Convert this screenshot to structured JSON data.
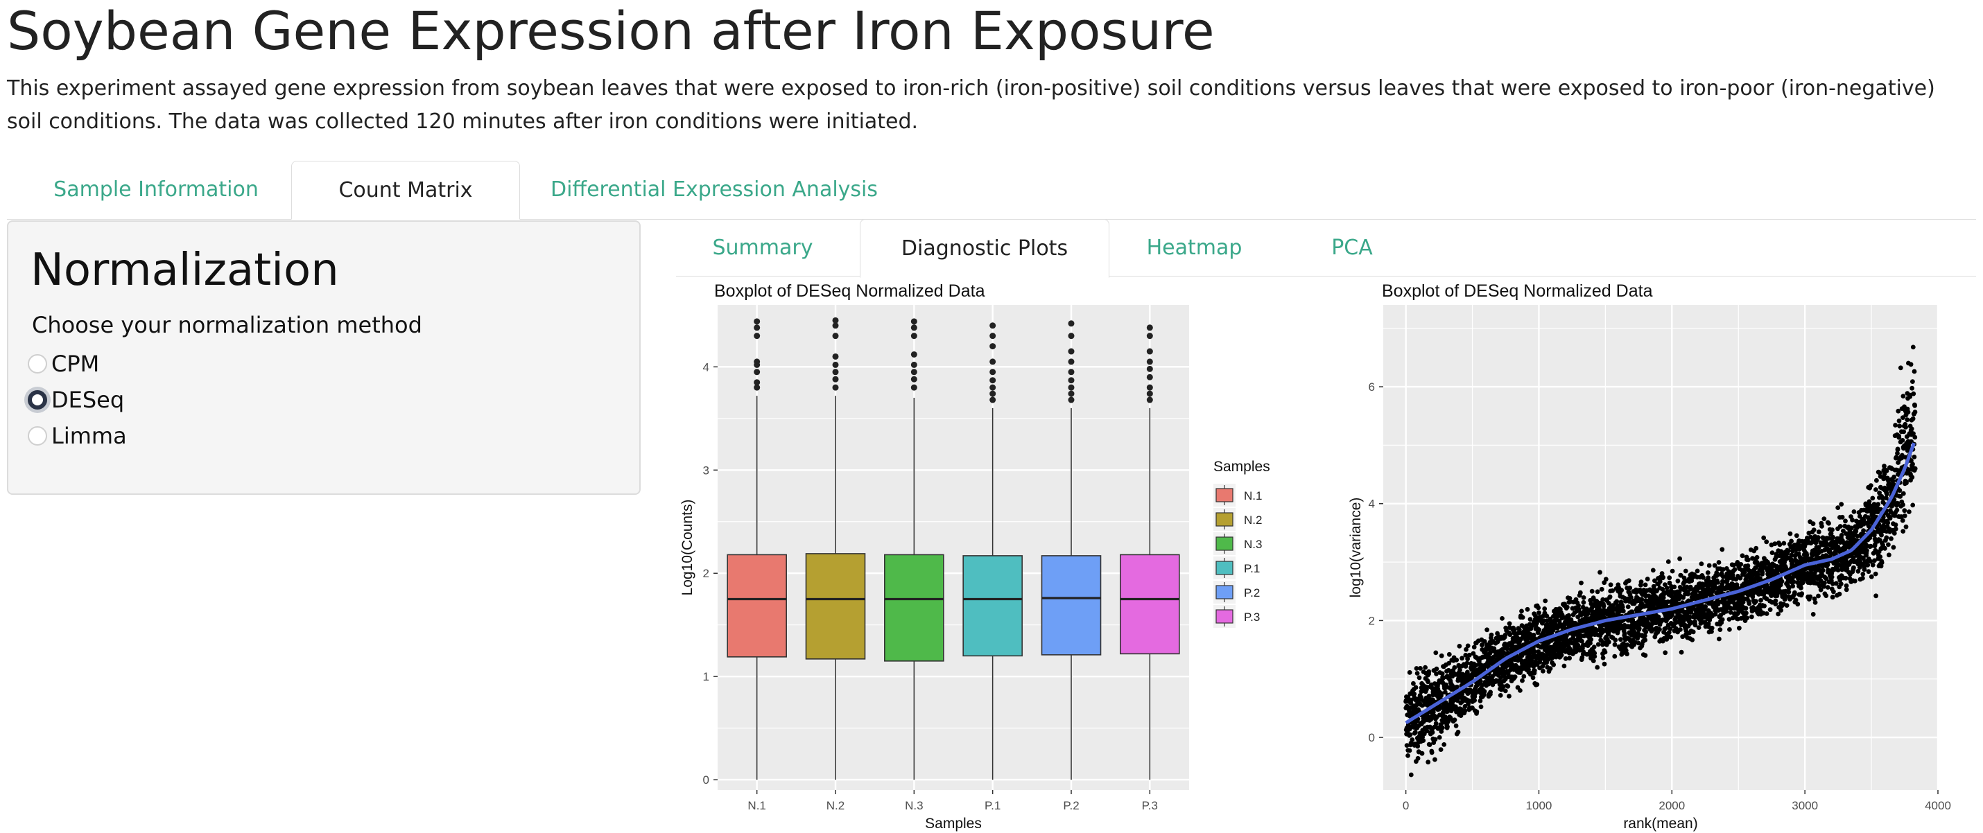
{
  "page": {
    "title": "Soybean Gene Expression after Iron Exposure",
    "description": "This experiment assayed gene expression from soybean leaves that were exposed to iron-rich (iron-positive) soil conditions versus leaves that were exposed to iron-poor (iron-negative) soil conditions. The data was collected 120 minutes after iron conditions were initiated."
  },
  "main_tabs": [
    {
      "label": "Sample Information",
      "active": false
    },
    {
      "label": "Count Matrix",
      "active": true
    },
    {
      "label": "Differential Expression Analysis",
      "active": false
    }
  ],
  "sidebar": {
    "heading": "Normalization",
    "choose_label": "Choose your normalization method",
    "options": [
      {
        "label": "CPM",
        "checked": false
      },
      {
        "label": "DESeq",
        "checked": true
      },
      {
        "label": "Limma",
        "checked": false
      }
    ]
  },
  "sub_tabs": [
    {
      "label": "Summary",
      "active": false
    },
    {
      "label": "Diagnostic Plots",
      "active": true
    },
    {
      "label": "Heatmap",
      "active": false
    },
    {
      "label": "PCA",
      "active": false
    }
  ],
  "colors": {
    "accent": "#3ba88a",
    "panel_bg": "#ebebeb",
    "trend_line": "#4a63d8"
  },
  "chart_data": [
    {
      "type": "boxplot",
      "title": "Boxplot of DESeq Normalized Data",
      "xlabel": "Samples",
      "ylabel": "Log10(Counts)",
      "ylim": [
        -0.1,
        4.6
      ],
      "yticks": [
        0,
        1,
        2,
        3,
        4
      ],
      "legend": {
        "title": "Samples",
        "placement": "right"
      },
      "categories": [
        "N.1",
        "N.2",
        "N.3",
        "P.1",
        "P.2",
        "P.3"
      ],
      "colors": [
        "#e8796f",
        "#b5a031",
        "#4fb94a",
        "#4fbec0",
        "#6e9ff6",
        "#e46ae0"
      ],
      "boxes": [
        {
          "whisker_low": 0,
          "q1": 1.19,
          "median": 1.75,
          "q3": 2.18,
          "whisker_high": 3.72,
          "outliers": [
            3.8,
            3.85,
            3.95,
            4.02,
            4.05,
            4.3,
            4.38,
            4.44
          ]
        },
        {
          "whisker_low": 0,
          "q1": 1.17,
          "median": 1.75,
          "q3": 2.19,
          "whisker_high": 3.72,
          "outliers": [
            3.8,
            3.88,
            3.95,
            4.02,
            4.1,
            4.3,
            4.4,
            4.45
          ]
        },
        {
          "whisker_low": 0,
          "q1": 1.15,
          "median": 1.75,
          "q3": 2.18,
          "whisker_high": 3.7,
          "outliers": [
            3.8,
            3.88,
            3.95,
            4.02,
            4.12,
            4.3,
            4.38,
            4.44
          ]
        },
        {
          "whisker_low": 0,
          "q1": 1.2,
          "median": 1.75,
          "q3": 2.17,
          "whisker_high": 3.6,
          "outliers": [
            3.68,
            3.74,
            3.8,
            3.87,
            3.95,
            4.05,
            4.2,
            4.3,
            4.4
          ]
        },
        {
          "whisker_low": 0,
          "q1": 1.21,
          "median": 1.76,
          "q3": 2.17,
          "whisker_high": 3.6,
          "outliers": [
            3.68,
            3.74,
            3.8,
            3.87,
            3.95,
            4.05,
            4.15,
            4.3,
            4.42
          ]
        },
        {
          "whisker_low": 0,
          "q1": 1.22,
          "median": 1.75,
          "q3": 2.18,
          "whisker_high": 3.6,
          "outliers": [
            3.68,
            3.74,
            3.8,
            3.9,
            3.98,
            4.05,
            4.15,
            4.3,
            4.38
          ]
        }
      ]
    },
    {
      "type": "scatter",
      "title": "Boxplot of DESeq Normalized Data",
      "xlabel": "rank(mean)",
      "ylabel": "log10(variance)",
      "xlim": [
        -170,
        4000
      ],
      "ylim": [
        -0.9,
        7.4
      ],
      "xticks": [
        0,
        1000,
        2000,
        3000,
        4000
      ],
      "yticks": [
        0,
        2,
        4,
        6
      ],
      "n_points": 3830,
      "trend": {
        "x": [
          0,
          250,
          500,
          750,
          1000,
          1250,
          1500,
          1750,
          2000,
          2250,
          2500,
          2750,
          3000,
          3200,
          3350,
          3500,
          3650,
          3750,
          3830
        ],
        "y": [
          0.25,
          0.6,
          0.95,
          1.35,
          1.65,
          1.85,
          2.0,
          2.1,
          2.2,
          2.35,
          2.5,
          2.7,
          2.95,
          3.05,
          3.2,
          3.55,
          4.1,
          4.6,
          5.1
        ]
      }
    }
  ]
}
